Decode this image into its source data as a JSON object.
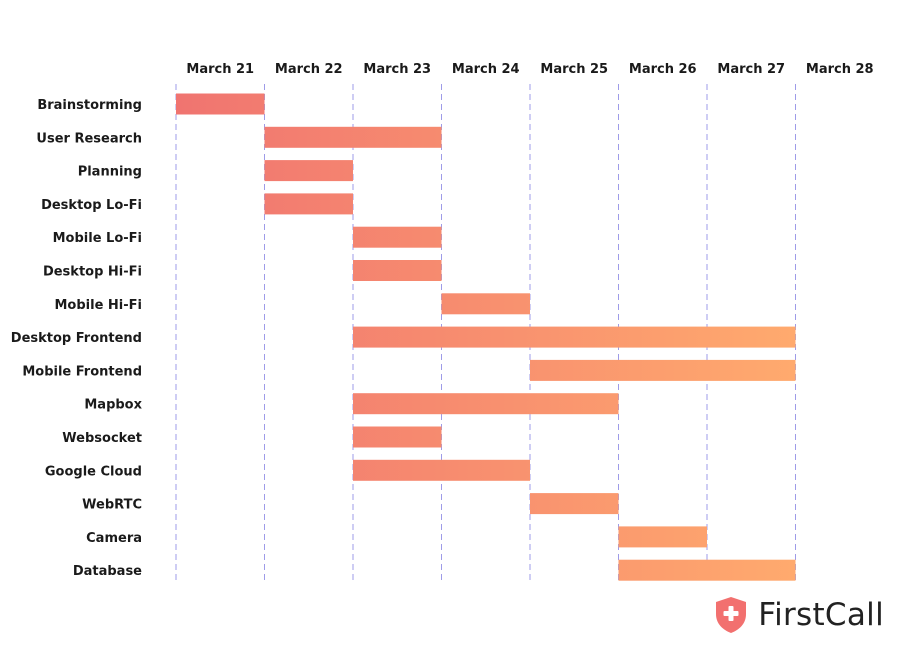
{
  "chart_data": {
    "type": "gantt",
    "title": "",
    "dates": [
      "March 21",
      "March 22",
      "March 23",
      "March 24",
      "March 25",
      "March 26",
      "March 27",
      "March 28"
    ],
    "tasks": [
      {
        "name": "Brainstorming",
        "start": "March 21",
        "end": "March 22"
      },
      {
        "name": "User Research",
        "start": "March 22",
        "end": "March 24"
      },
      {
        "name": "Planning",
        "start": "March 22",
        "end": "March 23"
      },
      {
        "name": "Desktop Lo-Fi",
        "start": "March 22",
        "end": "March 23"
      },
      {
        "name": "Mobile Lo-Fi",
        "start": "March 23",
        "end": "March 24"
      },
      {
        "name": "Desktop Hi-Fi",
        "start": "March 23",
        "end": "March 24"
      },
      {
        "name": "Mobile Hi-Fi",
        "start": "March 24",
        "end": "March 25"
      },
      {
        "name": "Desktop Frontend",
        "start": "March 23",
        "end": "March 28"
      },
      {
        "name": "Mobile Frontend",
        "start": "March 25",
        "end": "March 28"
      },
      {
        "name": "Mapbox",
        "start": "March 23",
        "end": "March 26"
      },
      {
        "name": "Websocket",
        "start": "March 23",
        "end": "March 24"
      },
      {
        "name": "Google Cloud",
        "start": "March 23",
        "end": "March 25"
      },
      {
        "name": "WebRTC",
        "start": "March 25",
        "end": "March 26"
      },
      {
        "name": "Camera",
        "start": "March 26",
        "end": "March 27"
      },
      {
        "name": "Database",
        "start": "March 26",
        "end": "March 28"
      }
    ],
    "colors": {
      "bar_start": "#F07470",
      "bar_end": "#FFAA6E",
      "gridline": "#9E9BE8"
    },
    "grid": true
  },
  "brand": {
    "name": "FirstCall",
    "icon": "shield-plus-icon",
    "color": "#F2706F"
  }
}
